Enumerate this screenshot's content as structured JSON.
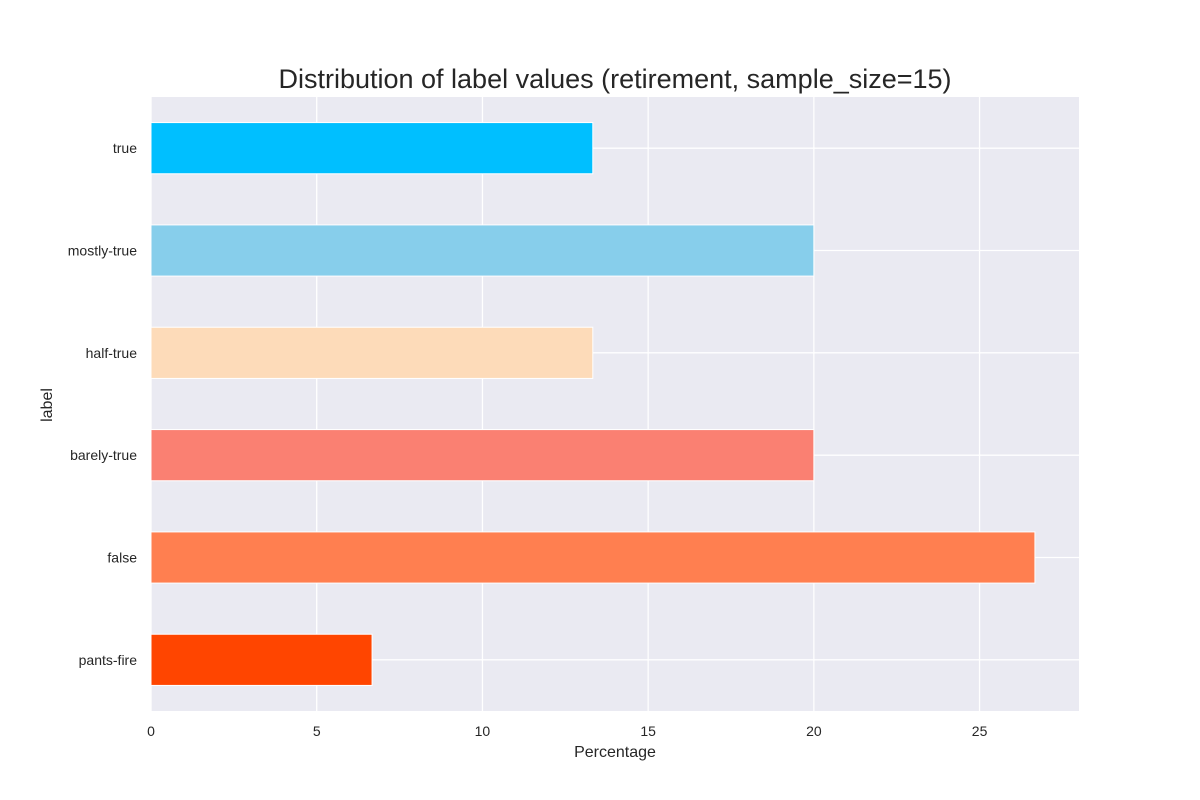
{
  "chart_data": {
    "type": "bar",
    "orientation": "horizontal",
    "title": "Distribution of label values (retirement, sample_size=15)",
    "xlabel": "Percentage",
    "ylabel": "label",
    "xlim": [
      0,
      28
    ],
    "xticks": [
      0,
      5,
      10,
      15,
      20,
      25
    ],
    "grid": true,
    "categories": [
      "pants-fire",
      "false",
      "barely-true",
      "half-true",
      "mostly-true",
      "true"
    ],
    "values": [
      6.67,
      26.67,
      20.0,
      13.33,
      20.0,
      13.33
    ],
    "colors": [
      "#ff4500",
      "#ff7f50",
      "#fa8072",
      "#fddbb9",
      "#87ceeb",
      "#00bfff"
    ],
    "background_color": "#eaeaf2",
    "grid_color": "#ffffff"
  }
}
